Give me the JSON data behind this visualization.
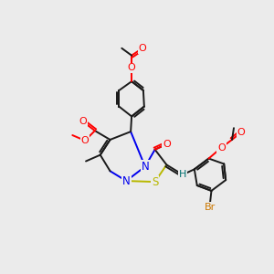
{
  "bg_color": "#ebebeb",
  "bond_color": "#1a1a1a",
  "atom_colors": {
    "O": "#ff0000",
    "N": "#0000ee",
    "S": "#b8b800",
    "Br": "#cc7700",
    "H": "#007070"
  }
}
